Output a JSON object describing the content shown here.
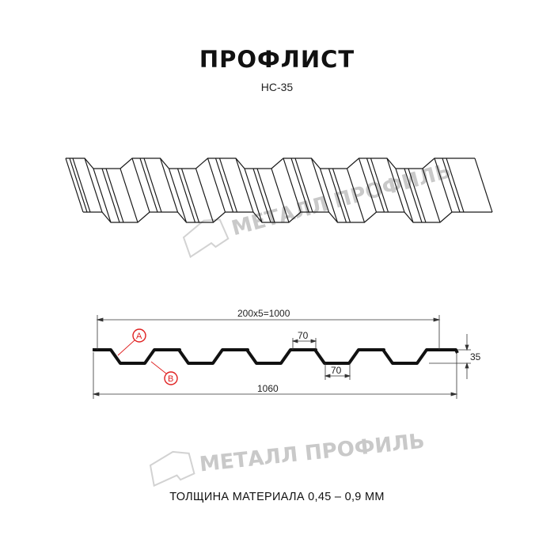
{
  "header": {
    "title": "ПРОФЛИСТ",
    "subtitle": "НС-35"
  },
  "watermark": {
    "text": "МЕТАЛЛ ПРОФИЛЬ"
  },
  "drawing": {
    "dim_pitch": "200x5=1000",
    "dim_total": "1060",
    "dim_top_flat": "70",
    "dim_bottom_flat": "70",
    "dim_height": "35",
    "callout_a": "A",
    "callout_b": "B"
  },
  "footer": {
    "text": "ТОЛЩИНА МАТЕРИАЛА 0,45 – 0,9 ММ"
  },
  "colors": {
    "line": "#1a1a1a",
    "callout": "#e02020",
    "watermark": "#c9c9c9"
  }
}
